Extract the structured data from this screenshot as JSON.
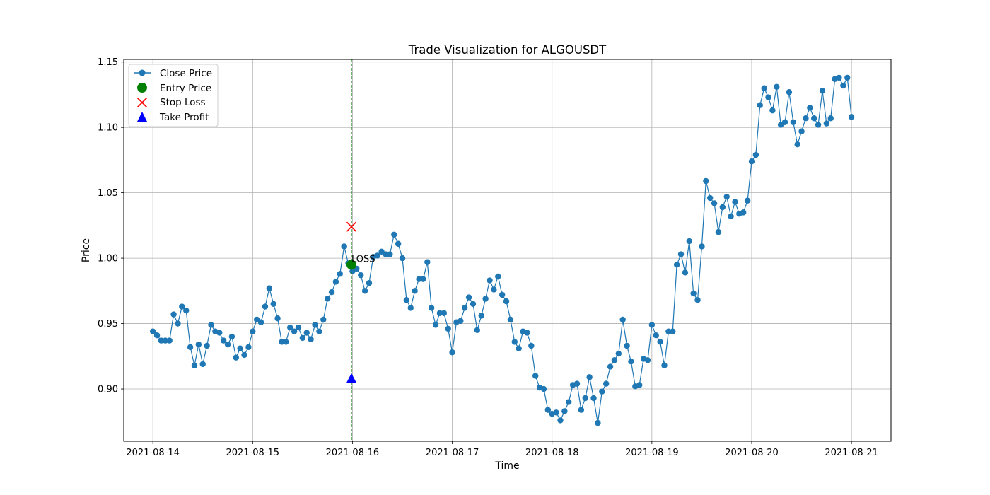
{
  "chart_data": {
    "type": "line",
    "title": "Trade Visualization for ALGOUSDT",
    "xlabel": "Time",
    "ylabel": "Price",
    "grid": true,
    "legend_position": "upper-left",
    "xlim": [
      "2021-08-13T17:00",
      "2021-08-21T09:30"
    ],
    "ylim": [
      0.86,
      1.152
    ],
    "x_ticks": [
      {
        "date": "2021-08-14",
        "label": "2021-08-14"
      },
      {
        "date": "2021-08-15",
        "label": "2021-08-15"
      },
      {
        "date": "2021-08-16",
        "label": "2021-08-16"
      },
      {
        "date": "2021-08-17",
        "label": "2021-08-17"
      },
      {
        "date": "2021-08-18",
        "label": "2021-08-18"
      },
      {
        "date": "2021-08-19",
        "label": "2021-08-19"
      },
      {
        "date": "2021-08-20",
        "label": "2021-08-20"
      },
      {
        "date": "2021-08-21",
        "label": "2021-08-21"
      }
    ],
    "y_ticks": [
      {
        "value": 0.9,
        "label": "0.90"
      },
      {
        "value": 0.95,
        "label": "0.95"
      },
      {
        "value": 1.0,
        "label": "1.00"
      },
      {
        "value": 1.05,
        "label": "1.05"
      },
      {
        "value": 1.1,
        "label": "1.10"
      },
      {
        "value": 1.15,
        "label": "1.15"
      }
    ],
    "series": [
      {
        "name": "Close Price",
        "color": "#1f77b4",
        "x_start": "2021-08-14T00:00",
        "x_step_hours": 1,
        "x_every_n_steps": 1,
        "values": [
          0.944,
          0.941,
          0.937,
          0.937,
          0.937,
          0.957,
          0.95,
          0.963,
          0.96,
          0.932,
          0.918,
          0.934,
          0.919,
          0.933,
          0.949,
          0.944,
          0.943,
          0.937,
          0.934,
          0.94,
          0.924,
          0.931,
          0.926,
          0.932,
          0.944,
          0.953,
          0.951,
          0.963,
          0.977,
          0.965,
          0.954,
          0.936,
          0.936,
          0.947,
          0.944,
          0.947,
          0.939,
          0.943,
          0.938,
          0.949,
          0.944,
          0.953,
          0.969,
          0.974,
          0.982,
          0.988,
          1.009,
          0.996,
          0.99,
          0.992,
          0.987,
          0.975,
          0.981,
          1.001,
          1.002,
          1.005,
          1.003,
          1.003,
          1.018,
          1.011,
          1.0,
          0.968,
          0.962,
          0.975,
          0.984,
          0.984,
          0.997,
          0.962,
          0.949,
          0.958,
          0.958,
          0.946,
          0.928,
          0.951,
          0.952,
          0.962,
          0.97,
          0.965,
          0.945,
          0.956,
          0.969,
          0.983,
          0.976,
          0.986,
          0.972,
          0.967,
          0.953,
          0.936,
          0.931,
          0.944,
          0.943,
          0.933,
          0.91,
          0.901,
          0.9,
          0.884,
          0.881,
          0.882,
          0.876,
          0.883,
          0.89,
          0.903,
          0.904,
          0.884,
          0.893,
          0.909,
          0.893,
          0.874,
          0.898,
          0.904,
          0.917,
          0.922,
          0.927,
          0.953,
          0.933,
          0.921,
          0.902,
          0.903,
          0.923,
          0.922,
          0.949,
          0.941,
          0.936,
          0.918,
          0.944,
          0.944,
          0.995,
          1.003,
          0.989,
          1.013,
          0.973,
          0.968,
          1.009,
          1.059,
          1.046,
          1.042,
          1.02,
          1.039,
          1.047,
          1.032,
          1.043,
          1.034,
          1.035,
          1.044,
          1.074,
          1.079,
          1.117,
          1.13,
          1.123,
          1.113,
          1.131,
          1.102,
          1.104,
          1.127,
          1.104,
          1.087,
          1.097,
          1.107,
          1.115,
          1.107,
          1.102,
          1.128,
          1.103,
          1.107,
          1.137,
          1.138,
          1.132,
          1.138,
          1.108
        ]
      }
    ],
    "markers": [
      {
        "name": "Entry Price",
        "color": "#008000",
        "shape": "circle",
        "x": "2021-08-15T23:45",
        "y": 0.995
      },
      {
        "name": "Stop Loss",
        "color": "#ff0000",
        "shape": "x",
        "x": "2021-08-15T23:45",
        "y": 1.024
      },
      {
        "name": "Take Profit",
        "color": "#0000ff",
        "shape": "triangle",
        "x": "2021-08-15T23:45",
        "y": 0.908
      }
    ],
    "vertical_lines": [
      {
        "x": "2021-08-15T23:45",
        "color": "#008000",
        "style": "dashed"
      }
    ],
    "annotations": [
      {
        "text": "LOSS",
        "x": "2021-08-15T23:45",
        "y": 0.995
      }
    ]
  }
}
